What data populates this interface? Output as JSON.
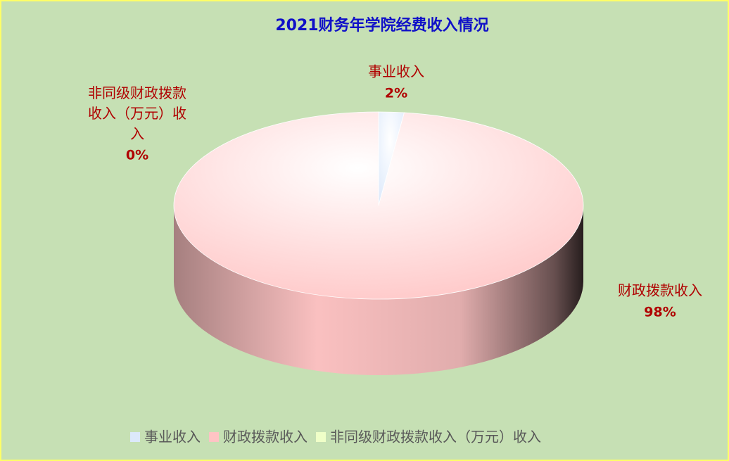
{
  "chart_data": {
    "type": "pie",
    "title": "2021财务年学院经费收入情况",
    "categories": [
      "事业收入",
      "财政拨款收入",
      "非同级财政拨款收入（万元）收入"
    ],
    "values": [
      2,
      98,
      0
    ],
    "value_labels": [
      "2%",
      "98%",
      "0%"
    ],
    "colors": [
      "#dce9fb",
      "#ffc4c4",
      "#efffc8"
    ],
    "legend": "bottom"
  }
}
